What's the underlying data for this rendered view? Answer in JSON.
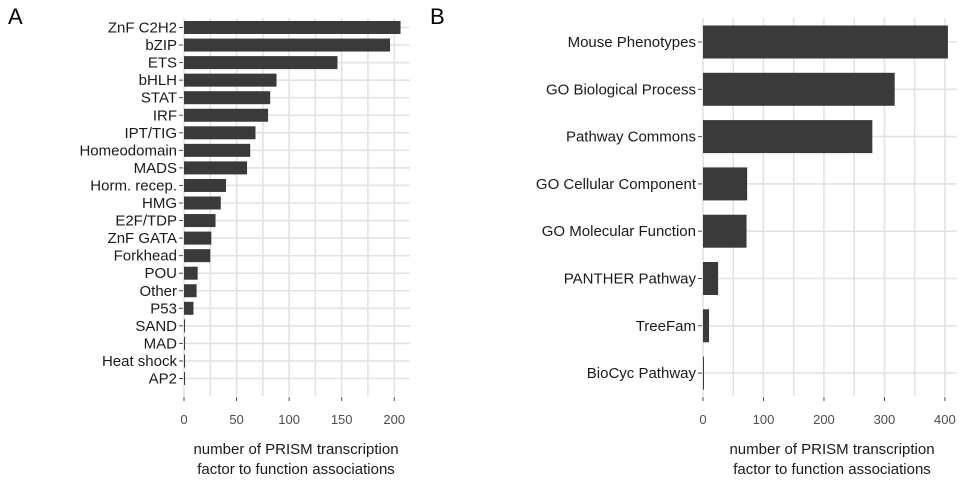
{
  "chart_data": [
    {
      "panel": "A",
      "type": "bar",
      "orientation": "horizontal",
      "categories": [
        "ZnF C2H2",
        "bZIP",
        "ETS",
        "bHLH",
        "STAT",
        "IRF",
        "IPT/TIG",
        "Homeodomain",
        "MADS",
        "Horm. recep.",
        "HMG",
        "E2F/TDP",
        "ZnF GATA",
        "Forkhead",
        "POU",
        "Other",
        "P53",
        "SAND",
        "MAD",
        "Heat shock",
        "AP2"
      ],
      "values": [
        206,
        196,
        146,
        88,
        82,
        80,
        68,
        63,
        60,
        40,
        35,
        30,
        26,
        25,
        13,
        12,
        9,
        1,
        1,
        1,
        1
      ],
      "xticks": [
        "0",
        "50",
        "100",
        "150",
        "200"
      ],
      "xlim": [
        0,
        215
      ],
      "xlabel": [
        "number of PRISM transcription",
        "factor to function associations"
      ],
      "ylabel": "",
      "grid": true,
      "bar_color": "#3a3a3a"
    },
    {
      "panel": "B",
      "type": "bar",
      "orientation": "horizontal",
      "categories": [
        "Mouse Phenotypes",
        "GO Biological Process",
        "Pathway Commons",
        "GO Cellular Component",
        "GO Molecular Function",
        "PANTHER Pathway",
        "TreeFam",
        "BioCyc Pathway"
      ],
      "values": [
        405,
        317,
        280,
        73,
        72,
        25,
        10,
        1
      ],
      "xticks": [
        "0",
        "100",
        "200",
        "300",
        "400"
      ],
      "xlim": [
        0,
        420
      ],
      "xlabel": [
        "number of PRISM transcription",
        "factor to function associations"
      ],
      "ylabel": "",
      "grid": true,
      "bar_color": "#3a3a3a"
    }
  ]
}
